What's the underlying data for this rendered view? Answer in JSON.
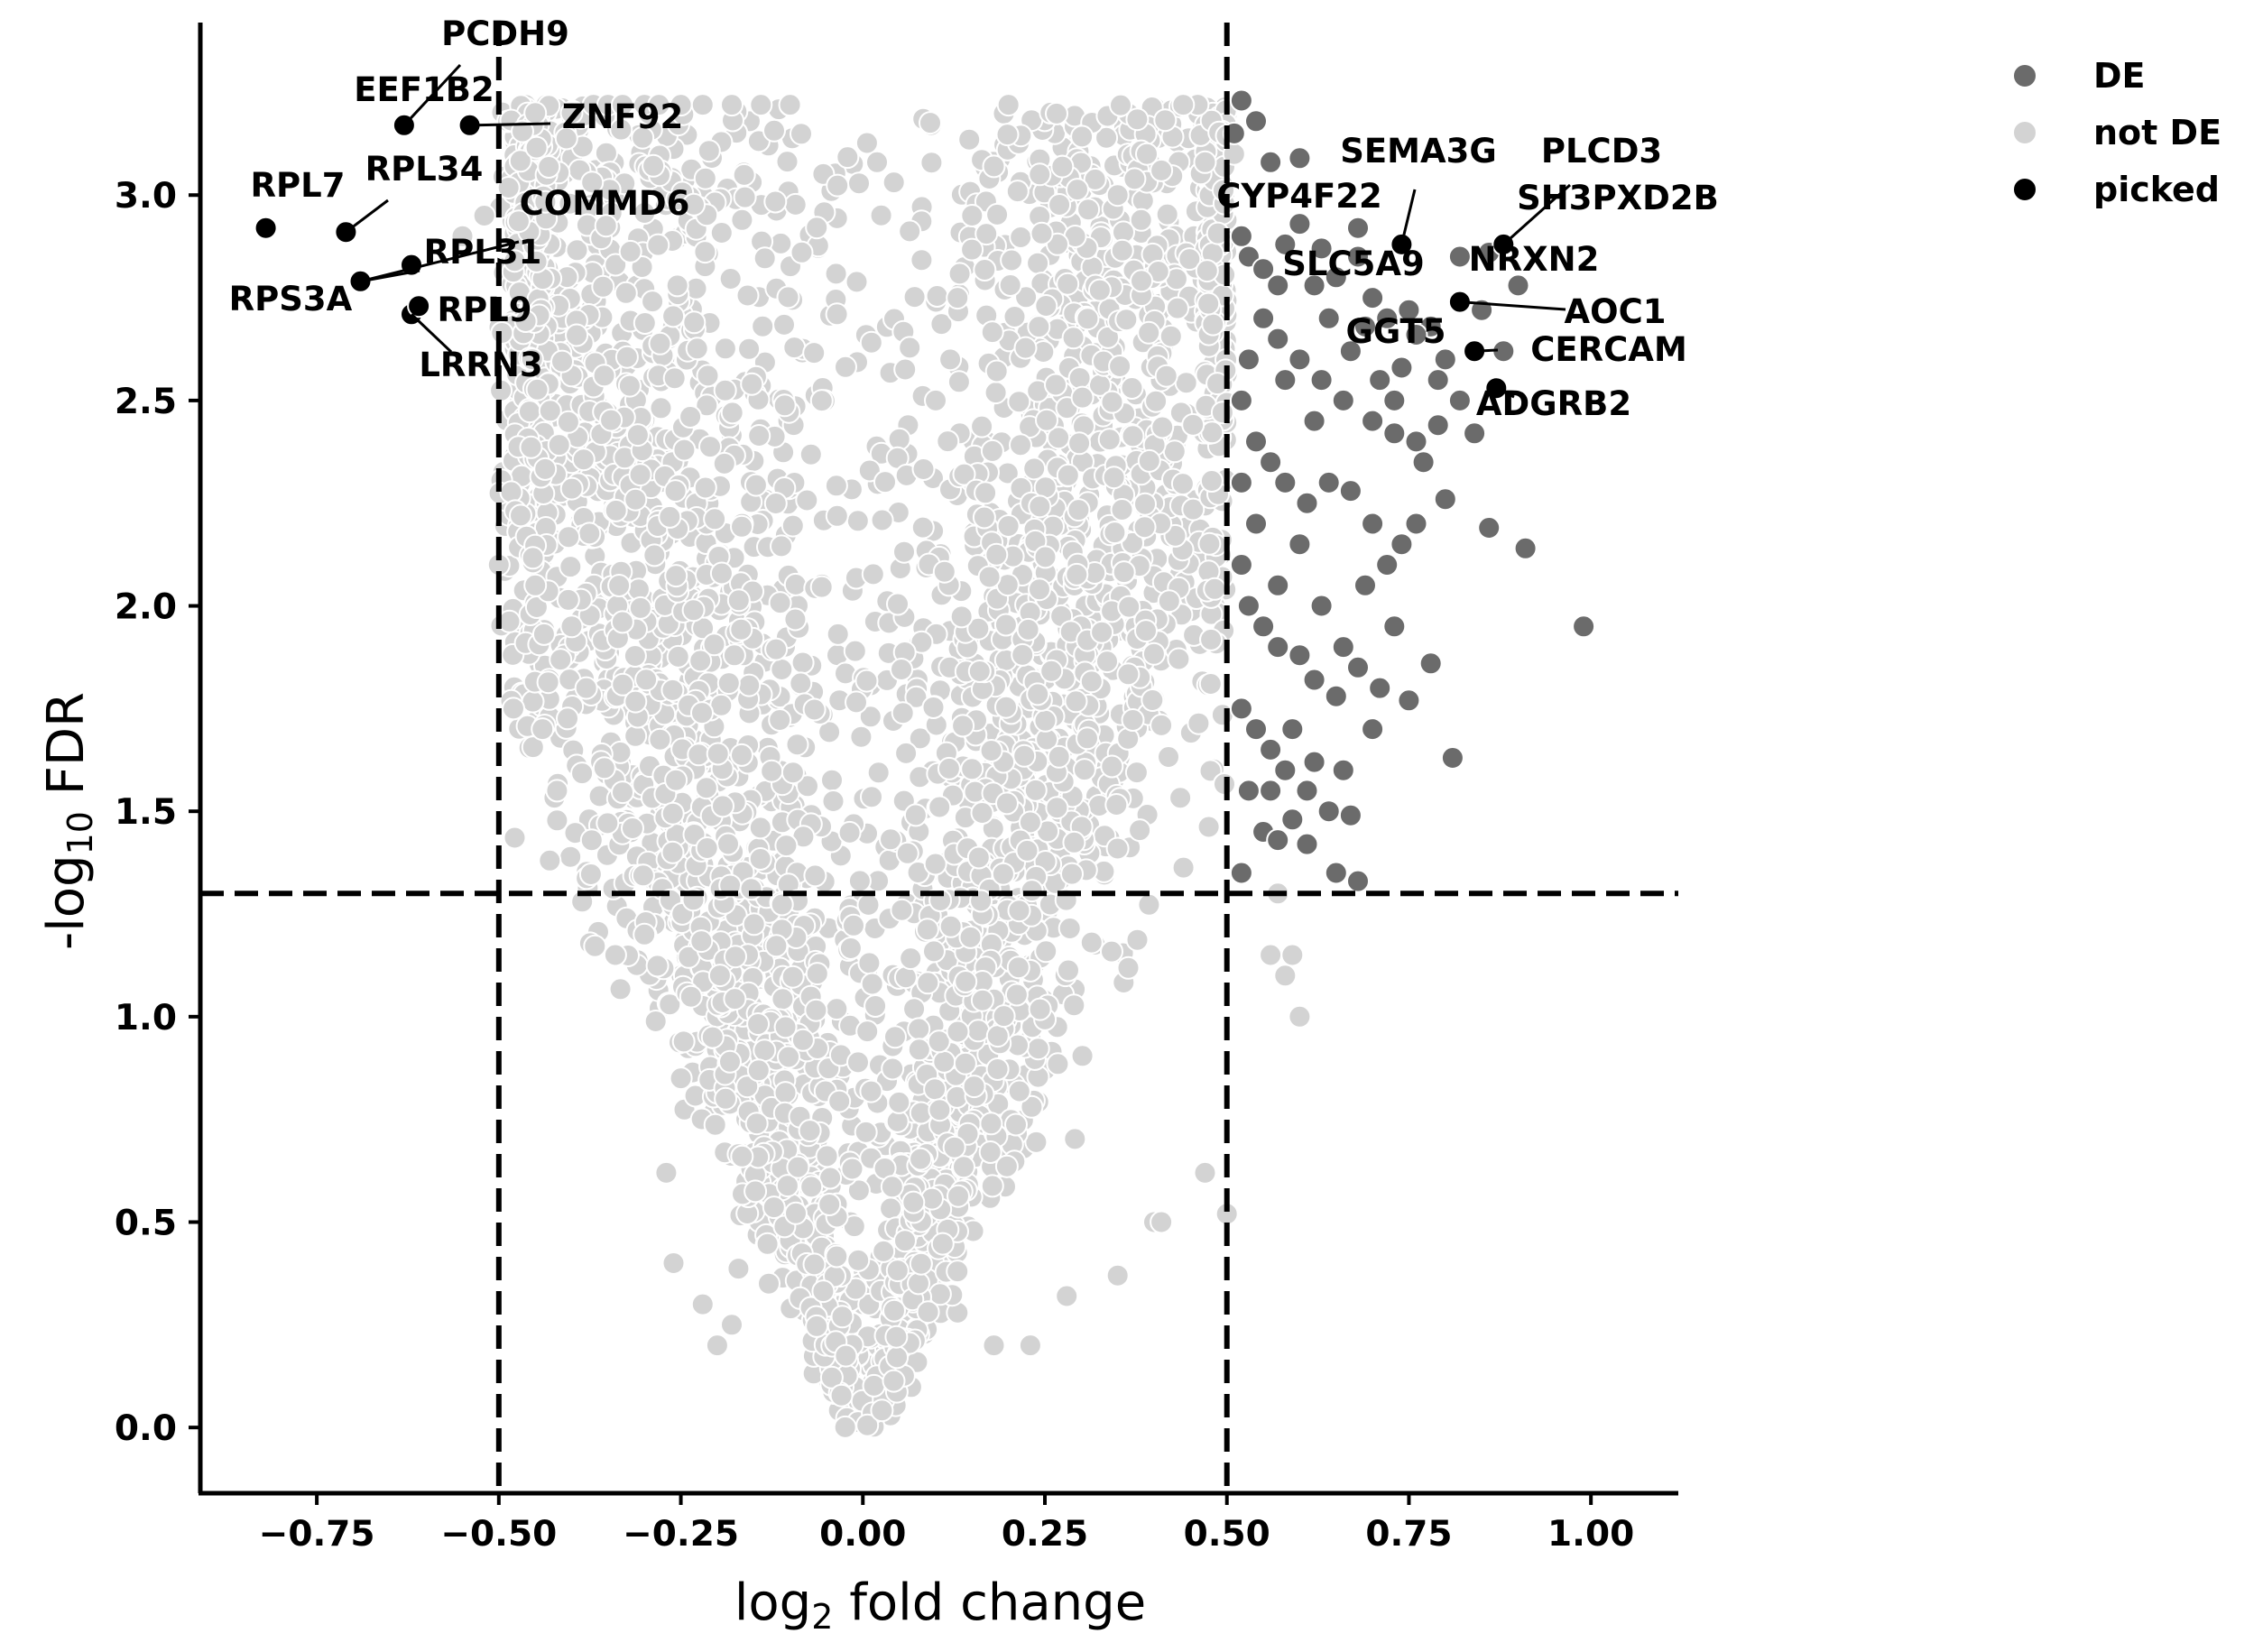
{
  "chart_data": {
    "type": "scatter",
    "xlabel": {
      "base": "log",
      "sub": "2",
      "rest": " fold change"
    },
    "ylabel": {
      "prefix": "-log",
      "sub": "10",
      "rest": " FDR"
    },
    "xlim": [
      -0.91,
      1.12
    ],
    "ylim": [
      -0.16,
      3.42
    ],
    "x_ticks": [
      -0.75,
      -0.5,
      -0.25,
      0.0,
      0.25,
      0.5,
      0.75,
      1.0
    ],
    "x_tick_labels": [
      "−0.75",
      "−0.50",
      "−0.25",
      "0.00",
      "0.25",
      "0.50",
      "0.75",
      "1.00"
    ],
    "y_ticks": [
      0.0,
      0.5,
      1.0,
      1.5,
      2.0,
      2.5,
      3.0
    ],
    "y_tick_labels": [
      "0.0",
      "0.5",
      "1.0",
      "1.5",
      "2.0",
      "2.5",
      "3.0"
    ],
    "thresholds": {
      "x": [
        -0.5,
        0.5
      ],
      "y": 1.3
    },
    "legend": {
      "position": "top-right, outside plot",
      "entries": [
        {
          "label": "DE",
          "color": "#6b6b6b"
        },
        {
          "label": "not DE",
          "color": "#d3d3d3"
        },
        {
          "label": "picked",
          "color": "#000000"
        }
      ]
    },
    "colors": {
      "de": "#6b6b6b",
      "not_de": "#d3d3d3",
      "picked": "#000000",
      "marker_edge": "#ffffff"
    },
    "series": [
      {
        "name": "DE",
        "points": [
          [
            0.52,
            3.23
          ],
          [
            0.51,
            3.15
          ],
          [
            0.54,
            3.18
          ],
          [
            0.56,
            3.08
          ],
          [
            0.6,
            3.09
          ],
          [
            0.52,
            2.9
          ],
          [
            0.53,
            2.85
          ],
          [
            0.55,
            2.82
          ],
          [
            0.58,
            2.88
          ],
          [
            0.6,
            2.93
          ],
          [
            0.62,
            2.78
          ],
          [
            0.65,
            2.8
          ],
          [
            0.68,
            2.85
          ],
          [
            0.7,
            2.75
          ],
          [
            0.72,
            2.7
          ],
          [
            0.75,
            2.72
          ],
          [
            0.78,
            2.68
          ],
          [
            0.8,
            2.6
          ],
          [
            0.55,
            2.7
          ],
          [
            0.57,
            2.65
          ],
          [
            0.6,
            2.6
          ],
          [
            0.63,
            2.55
          ],
          [
            0.66,
            2.5
          ],
          [
            0.7,
            2.45
          ],
          [
            0.73,
            2.42
          ],
          [
            0.76,
            2.4
          ],
          [
            0.79,
            2.44
          ],
          [
            0.52,
            2.5
          ],
          [
            0.54,
            2.4
          ],
          [
            0.56,
            2.35
          ],
          [
            0.58,
            2.3
          ],
          [
            0.61,
            2.25
          ],
          [
            0.64,
            2.3
          ],
          [
            0.67,
            2.28
          ],
          [
            0.7,
            2.2
          ],
          [
            0.74,
            2.15
          ],
          [
            0.77,
            2.35
          ],
          [
            0.8,
            2.26
          ],
          [
            0.86,
            2.19
          ],
          [
            0.91,
            2.14
          ],
          [
            0.99,
            1.95
          ],
          [
            0.52,
            2.1
          ],
          [
            0.53,
            2.0
          ],
          [
            0.55,
            1.95
          ],
          [
            0.57,
            1.9
          ],
          [
            0.6,
            1.88
          ],
          [
            0.62,
            1.82
          ],
          [
            0.65,
            1.78
          ],
          [
            0.68,
            1.85
          ],
          [
            0.71,
            1.8
          ],
          [
            0.75,
            1.77
          ],
          [
            0.78,
            1.86
          ],
          [
            0.52,
            1.75
          ],
          [
            0.54,
            1.7
          ],
          [
            0.56,
            1.65
          ],
          [
            0.58,
            1.6
          ],
          [
            0.61,
            1.55
          ],
          [
            0.64,
            1.5
          ],
          [
            0.67,
            1.49
          ],
          [
            0.53,
            1.55
          ],
          [
            0.55,
            1.45
          ],
          [
            0.57,
            1.43
          ],
          [
            0.59,
            1.48
          ],
          [
            0.65,
            1.35
          ],
          [
            0.68,
            1.33
          ],
          [
            0.81,
            1.63
          ],
          [
            0.52,
            1.35
          ],
          [
            0.56,
            1.55
          ],
          [
            0.59,
            1.7
          ],
          [
            0.62,
            1.62
          ],
          [
            0.66,
            1.9
          ],
          [
            0.69,
            2.05
          ],
          [
            0.72,
            2.1
          ],
          [
            0.63,
            2.0
          ],
          [
            0.6,
            2.15
          ],
          [
            0.57,
            2.05
          ],
          [
            0.54,
            2.2
          ],
          [
            0.52,
            2.3
          ],
          [
            0.53,
            2.6
          ],
          [
            0.58,
            2.55
          ],
          [
            0.62,
            2.45
          ],
          [
            0.67,
            2.62
          ],
          [
            0.71,
            2.55
          ],
          [
            0.74,
            2.58
          ],
          [
            0.76,
            2.66
          ],
          [
            0.64,
            2.7
          ],
          [
            0.69,
            2.68
          ],
          [
            0.73,
            2.5
          ],
          [
            0.57,
            2.78
          ],
          [
            0.63,
            2.87
          ],
          [
            0.68,
            2.92
          ],
          [
            0.79,
            2.55
          ],
          [
            0.82,
            2.5
          ],
          [
            0.84,
            2.42
          ],
          [
            0.76,
            2.2
          ],
          [
            0.73,
            1.95
          ],
          [
            0.7,
            1.7
          ],
          [
            0.66,
            1.6
          ],
          [
            0.61,
            1.42
          ],
          [
            0.85,
            2.72
          ],
          [
            0.88,
            2.62
          ],
          [
            0.82,
            2.85
          ],
          [
            0.86,
            2.86
          ],
          [
            0.9,
            2.78
          ]
        ]
      },
      {
        "name": "not DE",
        "points": [
          [
            -0.5,
            2.1
          ],
          [
            -0.47,
            2.22
          ],
          [
            -0.45,
            2.05
          ],
          [
            -0.48,
            1.75
          ],
          [
            -0.44,
            1.7
          ],
          [
            -0.4,
            1.95
          ],
          [
            -0.38,
            1.8
          ],
          [
            -0.43,
            1.38
          ],
          [
            -0.42,
            1.55
          ],
          [
            -0.34,
            1.15
          ],
          [
            -0.3,
            1.2
          ],
          [
            -0.27,
            0.62
          ],
          [
            -0.25,
            0.85
          ],
          [
            -0.26,
            0.4
          ],
          [
            -0.2,
            0.2
          ],
          [
            -0.18,
            0.25
          ],
          [
            -0.22,
            0.3
          ],
          [
            0.13,
            0.38
          ],
          [
            0.18,
            0.2
          ],
          [
            0.23,
            0.2
          ],
          [
            0.28,
            0.32
          ],
          [
            0.35,
            0.37
          ],
          [
            0.4,
            0.5
          ],
          [
            0.47,
            0.62
          ],
          [
            0.5,
            0.52
          ],
          [
            0.41,
            0.5
          ],
          [
            0.55,
            1.45
          ],
          [
            0.57,
            1.3
          ],
          [
            0.56,
            1.15
          ],
          [
            0.58,
            1.1
          ],
          [
            0.59,
            1.15
          ],
          [
            0.6,
            1.0
          ],
          [
            0.46,
            3.22
          ],
          [
            0.44,
            3.22
          ],
          [
            0.47,
            3.08
          ],
          [
            0.41,
            3.06
          ],
          [
            0.39,
            3.1
          ],
          [
            0.35,
            3.0
          ],
          [
            0.51,
            3.1
          ],
          [
            0.2,
            3.22
          ],
          [
            0.18,
            3.07
          ],
          [
            0.15,
            2.95
          ],
          [
            0.13,
            2.75
          ],
          [
            0.12,
            2.6
          ],
          [
            0.1,
            2.5
          ],
          [
            -0.52,
            2.95
          ],
          [
            -0.55,
            2.9
          ],
          [
            -0.45,
            3.2
          ],
          [
            -0.4,
            3.2
          ],
          [
            -0.37,
            3.22
          ],
          [
            -0.35,
            3.22
          ],
          [
            -0.33,
            3.22
          ],
          [
            -0.3,
            3.22
          ],
          [
            -0.28,
            3.22
          ],
          [
            -0.25,
            3.22
          ],
          [
            -0.22,
            3.22
          ],
          [
            -0.18,
            3.22
          ],
          [
            -0.14,
            3.22
          ],
          [
            -0.1,
            3.22
          ]
        ]
      },
      {
        "name": "picked",
        "points": [
          [
            -0.82,
            2.92
          ],
          [
            -0.71,
            2.91
          ],
          [
            -0.63,
            3.17
          ],
          [
            -0.54,
            3.17
          ],
          [
            -0.69,
            2.79
          ],
          [
            -0.62,
            2.71
          ],
          [
            -0.61,
            2.73
          ],
          [
            -0.62,
            2.83
          ],
          [
            0.74,
            2.88
          ],
          [
            0.82,
            2.74
          ],
          [
            0.84,
            2.62
          ],
          [
            0.87,
            2.53
          ],
          [
            0.88,
            2.88
          ]
        ]
      }
    ],
    "annotations": [
      {
        "label": "PCDH9",
        "x": -0.63,
        "y": 3.17
      },
      {
        "label": "EEF1B2",
        "x": -0.63,
        "y": 3.17
      },
      {
        "label": "ZNF92",
        "x": -0.54,
        "y": 3.17
      },
      {
        "label": "RPL7",
        "x": -0.82,
        "y": 2.92
      },
      {
        "label": "RPL34",
        "x": -0.71,
        "y": 2.91
      },
      {
        "label": "COMMD6",
        "x": -0.69,
        "y": 2.79
      },
      {
        "label": "RPL31",
        "x": -0.69,
        "y": 2.79
      },
      {
        "label": "RPS3A",
        "x": -0.72,
        "y": 2.76
      },
      {
        "label": "RPL9",
        "x": -0.61,
        "y": 2.73
      },
      {
        "label": "LRRN3",
        "x": -0.62,
        "y": 2.71
      },
      {
        "label": "SEMA3G",
        "x": 0.74,
        "y": 2.88
      },
      {
        "label": "PLCD3",
        "x": 0.88,
        "y": 2.88
      },
      {
        "label": "CYP4F22",
        "x": 0.74,
        "y": 2.88
      },
      {
        "label": "SH3PXD2B",
        "x": 0.88,
        "y": 2.88
      },
      {
        "label": "SLC5A9",
        "x": 0.74,
        "y": 2.85
      },
      {
        "label": "NRXN2",
        "x": 0.86,
        "y": 2.86
      },
      {
        "label": "AOC1",
        "x": 0.82,
        "y": 2.74
      },
      {
        "label": "GGT5",
        "x": 0.79,
        "y": 2.68
      },
      {
        "label": "CERCAM",
        "x": 0.84,
        "y": 2.62
      },
      {
        "label": "ADGRB2",
        "x": 0.87,
        "y": 2.53
      }
    ]
  }
}
